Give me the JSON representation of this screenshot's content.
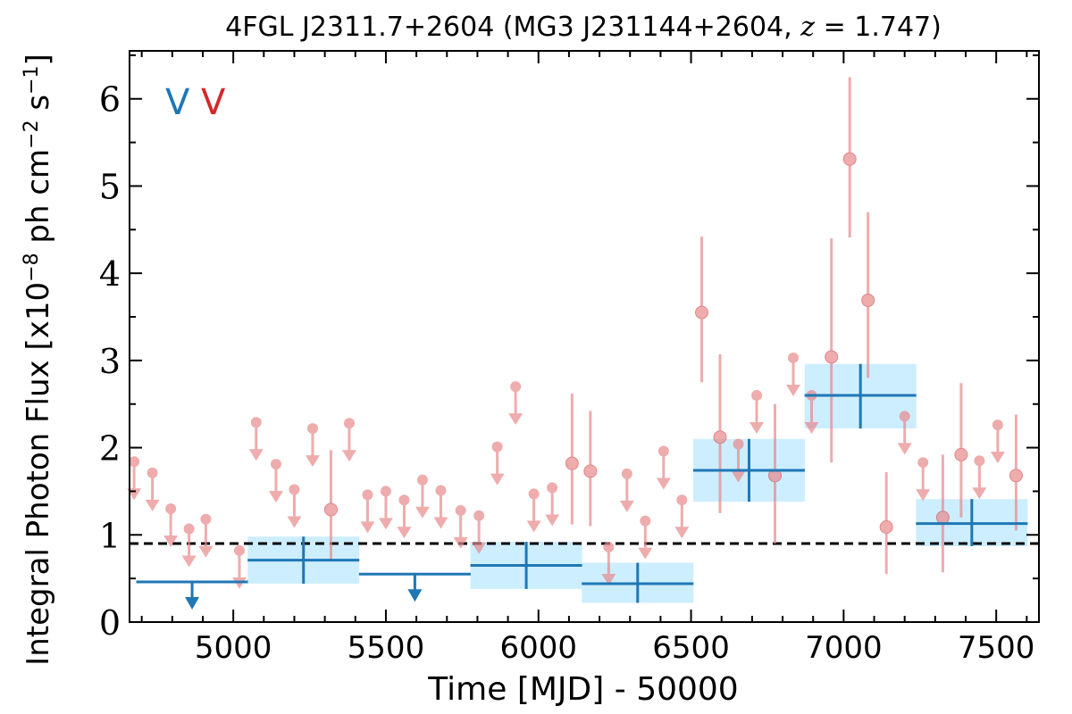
{
  "chart_data": {
    "type": "scatter",
    "title": "4FGL J2311.7+2604 (MG3 J231144+2604, z = 1.747)",
    "xlabel": "Time [MJD] - 50000",
    "ylabel": "Integral Photon Flux [x10^-8 ph cm^-2 s^-1]",
    "xlim": [
      4660,
      7640
    ],
    "ylim": [
      0,
      6.55
    ],
    "xticks": [
      5000,
      5500,
      6000,
      6500,
      7000,
      7500
    ],
    "yticks": [
      0,
      1,
      2,
      3,
      4,
      5,
      6
    ],
    "grid": false,
    "legend": {
      "placement": "top-left",
      "markers": [
        {
          "text": "V",
          "color": "#1f77b4"
        },
        {
          "text": "V",
          "color": "#d62728"
        }
      ]
    },
    "reference_line": {
      "y": 0.9,
      "style": "dashed",
      "color": "#000000"
    },
    "colors": {
      "yearly": "#1f77b4",
      "yearly_band": "#cceeff",
      "monthly": "#e8898b"
    },
    "series": [
      {
        "binning": "yearly",
        "points": [
          {
            "x": 4865,
            "xerr": 183,
            "y": 0.46,
            "ul": true
          },
          {
            "x": 5230,
            "xerr": 183,
            "y": 0.71,
            "ylow": 0.44,
            "yhigh": 0.98
          },
          {
            "x": 5595,
            "xerr": 183,
            "y": 0.55,
            "ul": true
          },
          {
            "x": 5960,
            "xerr": 183,
            "y": 0.65,
            "ylow": 0.38,
            "yhigh": 0.92
          },
          {
            "x": 6325,
            "xerr": 183,
            "y": 0.44,
            "ylow": 0.22,
            "yhigh": 0.68
          },
          {
            "x": 6690,
            "xerr": 183,
            "y": 1.74,
            "ylow": 1.38,
            "yhigh": 2.1
          },
          {
            "x": 7055,
            "xerr": 183,
            "y": 2.6,
            "ylow": 2.22,
            "yhigh": 2.96
          },
          {
            "x": 7420,
            "xerr": 183,
            "y": 1.13,
            "ylow": 0.87,
            "yhigh": 1.41
          }
        ]
      },
      {
        "binning": "monthly",
        "points": [
          {
            "x": 4675,
            "y": 1.84,
            "ul": true
          },
          {
            "x": 4735,
            "y": 1.71,
            "ul": true
          },
          {
            "x": 4795,
            "y": 1.3,
            "ul": true
          },
          {
            "x": 4855,
            "y": 1.07,
            "ul": true
          },
          {
            "x": 4910,
            "y": 1.18,
            "ul": true
          },
          {
            "x": 5020,
            "y": 0.82,
            "ul": true
          },
          {
            "x": 5075,
            "y": 2.29,
            "ul": true
          },
          {
            "x": 5140,
            "y": 1.81,
            "ul": true
          },
          {
            "x": 5200,
            "y": 1.52,
            "ul": true
          },
          {
            "x": 5260,
            "y": 2.22,
            "ul": true
          },
          {
            "x": 5320,
            "y": 1.29,
            "ylow": 0.72,
            "yhigh": 1.97
          },
          {
            "x": 5380,
            "y": 2.28,
            "ul": true
          },
          {
            "x": 5440,
            "y": 1.46,
            "ul": true
          },
          {
            "x": 5500,
            "y": 1.5,
            "ul": true
          },
          {
            "x": 5560,
            "y": 1.4,
            "ul": true
          },
          {
            "x": 5620,
            "y": 1.63,
            "ul": true
          },
          {
            "x": 5680,
            "y": 1.51,
            "ul": true
          },
          {
            "x": 5745,
            "y": 1.28,
            "ul": true
          },
          {
            "x": 5805,
            "y": 1.22,
            "ul": true
          },
          {
            "x": 5865,
            "y": 2.01,
            "ul": true
          },
          {
            "x": 5925,
            "y": 2.7,
            "ul": true
          },
          {
            "x": 5985,
            "y": 1.47,
            "ul": true
          },
          {
            "x": 6045,
            "y": 1.54,
            "ul": true
          },
          {
            "x": 6110,
            "y": 1.82,
            "ylow": 1.12,
            "yhigh": 2.62
          },
          {
            "x": 6170,
            "y": 1.73,
            "ylow": 1.1,
            "yhigh": 2.42
          },
          {
            "x": 6230,
            "y": 0.86,
            "ul": true
          },
          {
            "x": 6290,
            "y": 1.7,
            "ul": true
          },
          {
            "x": 6350,
            "y": 1.16,
            "ul": true
          },
          {
            "x": 6410,
            "y": 1.96,
            "ul": true
          },
          {
            "x": 6470,
            "y": 1.4,
            "ul": true
          },
          {
            "x": 6535,
            "y": 3.55,
            "ylow": 2.75,
            "yhigh": 4.42
          },
          {
            "x": 6595,
            "y": 2.12,
            "ylow": 1.25,
            "yhigh": 3.07
          },
          {
            "x": 6655,
            "y": 2.04,
            "ul": true
          },
          {
            "x": 6715,
            "y": 2.6,
            "ul": true
          },
          {
            "x": 6775,
            "y": 1.68,
            "ylow": 0.9,
            "yhigh": 2.5
          },
          {
            "x": 6835,
            "y": 3.03,
            "ul": true
          },
          {
            "x": 6895,
            "y": 2.6,
            "ul": true
          },
          {
            "x": 6960,
            "y": 3.04,
            "ylow": 1.83,
            "yhigh": 4.4
          },
          {
            "x": 7020,
            "y": 5.31,
            "ylow": 4.41,
            "yhigh": 6.25
          },
          {
            "x": 7080,
            "y": 3.69,
            "ylow": 2.8,
            "yhigh": 4.7
          },
          {
            "x": 7140,
            "y": 1.09,
            "ylow": 0.55,
            "yhigh": 1.72
          },
          {
            "x": 7200,
            "y": 2.36,
            "ul": true
          },
          {
            "x": 7260,
            "y": 1.83,
            "ul": true
          },
          {
            "x": 7325,
            "y": 1.2,
            "ylow": 0.57,
            "yhigh": 1.92
          },
          {
            "x": 7385,
            "y": 1.92,
            "ylow": 1.2,
            "yhigh": 2.74
          },
          {
            "x": 7445,
            "y": 1.85,
            "ul": true
          },
          {
            "x": 7505,
            "y": 2.26,
            "ul": true
          },
          {
            "x": 7565,
            "y": 1.68,
            "ylow": 1.05,
            "yhigh": 2.38
          }
        ]
      }
    ]
  }
}
